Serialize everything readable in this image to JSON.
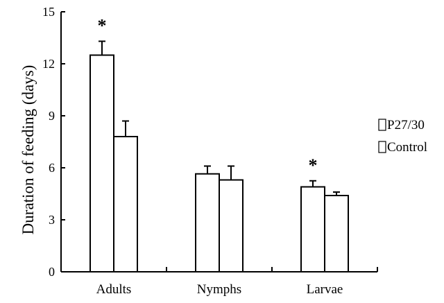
{
  "chart_data": {
    "type": "bar",
    "title": "",
    "xlabel": "",
    "ylabel": "Duration of feeding (days)",
    "ylim": [
      0,
      15
    ],
    "yticks": [
      "0",
      "3",
      "6",
      "9",
      "12",
      "15"
    ],
    "categories": [
      "Adults",
      "Nymphs",
      "Larvae"
    ],
    "series": [
      {
        "name": "P27/30",
        "values": [
          12.5,
          5.65,
          4.9
        ],
        "errors": [
          0.8,
          0.45,
          0.35
        ],
        "significance": [
          "*",
          "",
          "*"
        ]
      },
      {
        "name": "Control",
        "values": [
          7.8,
          5.3,
          4.4
        ],
        "errors": [
          0.9,
          0.8,
          0.2
        ],
        "significance": [
          "",
          "",
          ""
        ]
      }
    ],
    "legend_position": "right",
    "grid": false,
    "bar_color": "#ffffff",
    "edge_color": "#000000"
  }
}
